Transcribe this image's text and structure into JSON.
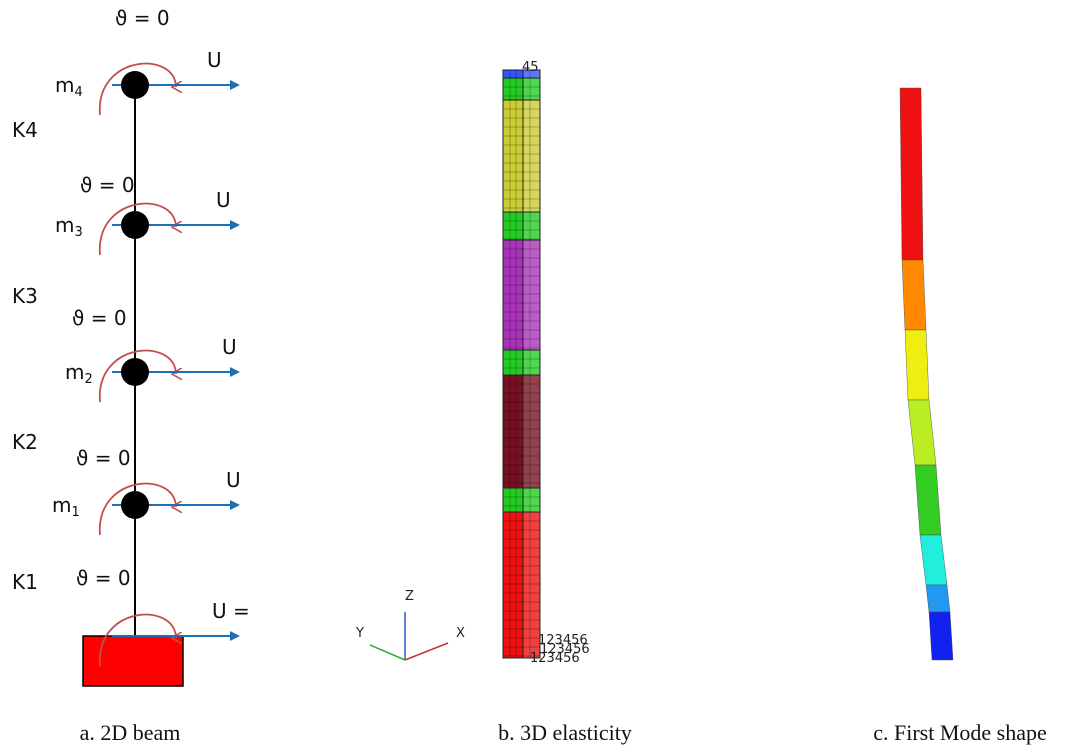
{
  "panel_a": {
    "caption": "a. 2D beam",
    "masses": [
      {
        "label": "m",
        "sub": "4",
        "theta": "ϑ = 0",
        "u": "U"
      },
      {
        "label": "m",
        "sub": "3",
        "theta": "ϑ = 0",
        "u": "U"
      },
      {
        "label": "m",
        "sub": "2",
        "theta": "ϑ = 0",
        "u": "U"
      },
      {
        "label": "m",
        "sub": "1",
        "theta": "ϑ = 0",
        "u": "U"
      }
    ],
    "springs": [
      "K4",
      "K3",
      "K2",
      "K1"
    ],
    "base": {
      "theta": "ϑ = 0",
      "u": "U ="
    }
  },
  "panel_b": {
    "caption": "b. 3D elasticity",
    "node_label": "45",
    "base_labels": [
      "123456",
      "123456",
      "123456"
    ],
    "axes": {
      "z": "Z",
      "y": "Y",
      "x": "X"
    }
  },
  "panel_c": {
    "caption": "c. First Mode shape"
  }
}
